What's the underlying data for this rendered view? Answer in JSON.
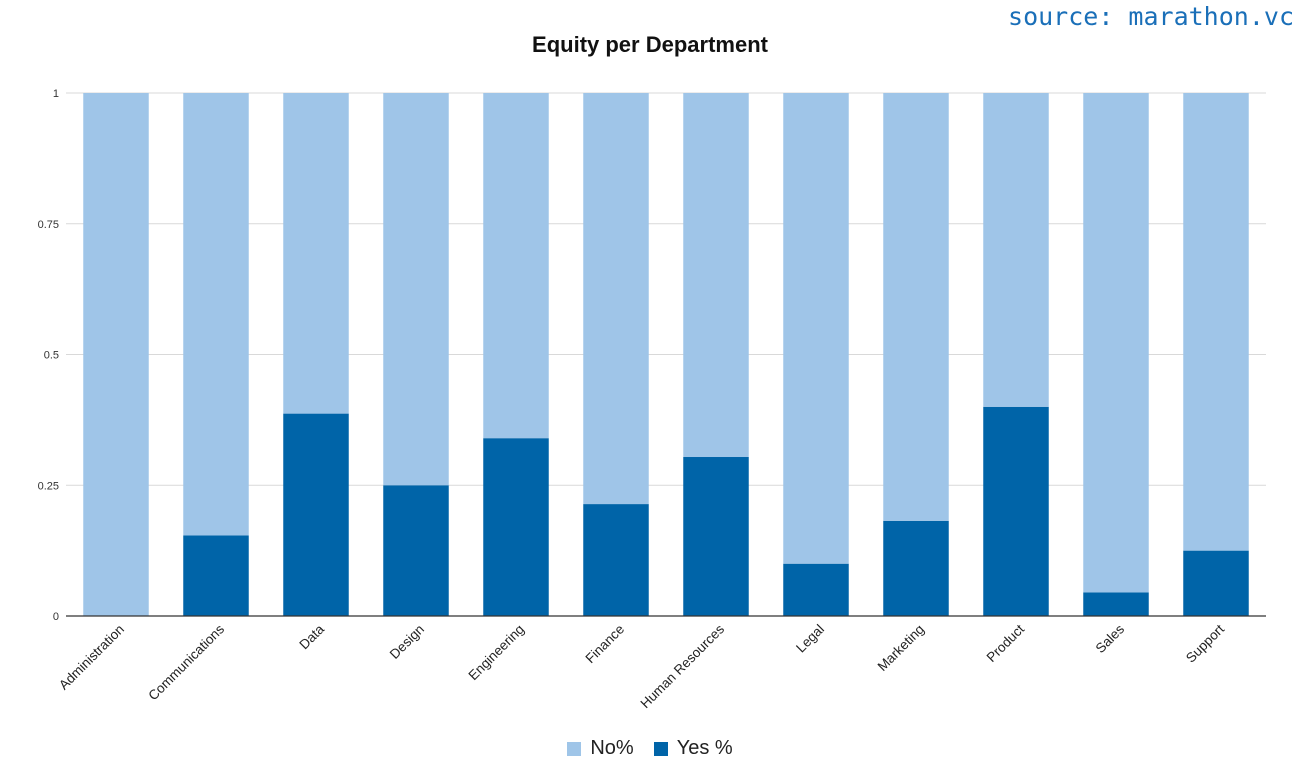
{
  "source_text": "source: marathon.vc",
  "chart_data": {
    "type": "bar",
    "stacked": true,
    "title": "Equity per Department",
    "xlabel": "",
    "ylabel": "",
    "ylim": [
      0,
      1
    ],
    "yticks": [
      0,
      0.25,
      0.5,
      0.75,
      1
    ],
    "ytick_labels": [
      "0",
      "0.25",
      "0.5",
      "0.75",
      "1"
    ],
    "grid": true,
    "legend_position": "bottom",
    "categories": [
      "Administration",
      "Communications",
      "Data",
      "Design",
      "Engineering",
      "Finance",
      "Human Resources",
      "Legal",
      "Marketing",
      "Product",
      "Sales",
      "Support"
    ],
    "series": [
      {
        "name": "Yes %",
        "color": "#0064a8",
        "values": [
          0,
          0.154,
          0.387,
          0.25,
          0.34,
          0.214,
          0.304,
          0.1,
          0.182,
          0.4,
          0.045,
          0.125
        ]
      },
      {
        "name": "No%",
        "color": "#9fc5e8",
        "values": [
          1,
          0.846,
          0.613,
          0.75,
          0.66,
          0.786,
          0.696,
          0.9,
          0.818,
          0.6,
          0.955,
          0.875
        ]
      }
    ],
    "legend": [
      {
        "label": "No%",
        "color": "#9fc5e8"
      },
      {
        "label": "Yes %",
        "color": "#0064a8"
      }
    ]
  }
}
